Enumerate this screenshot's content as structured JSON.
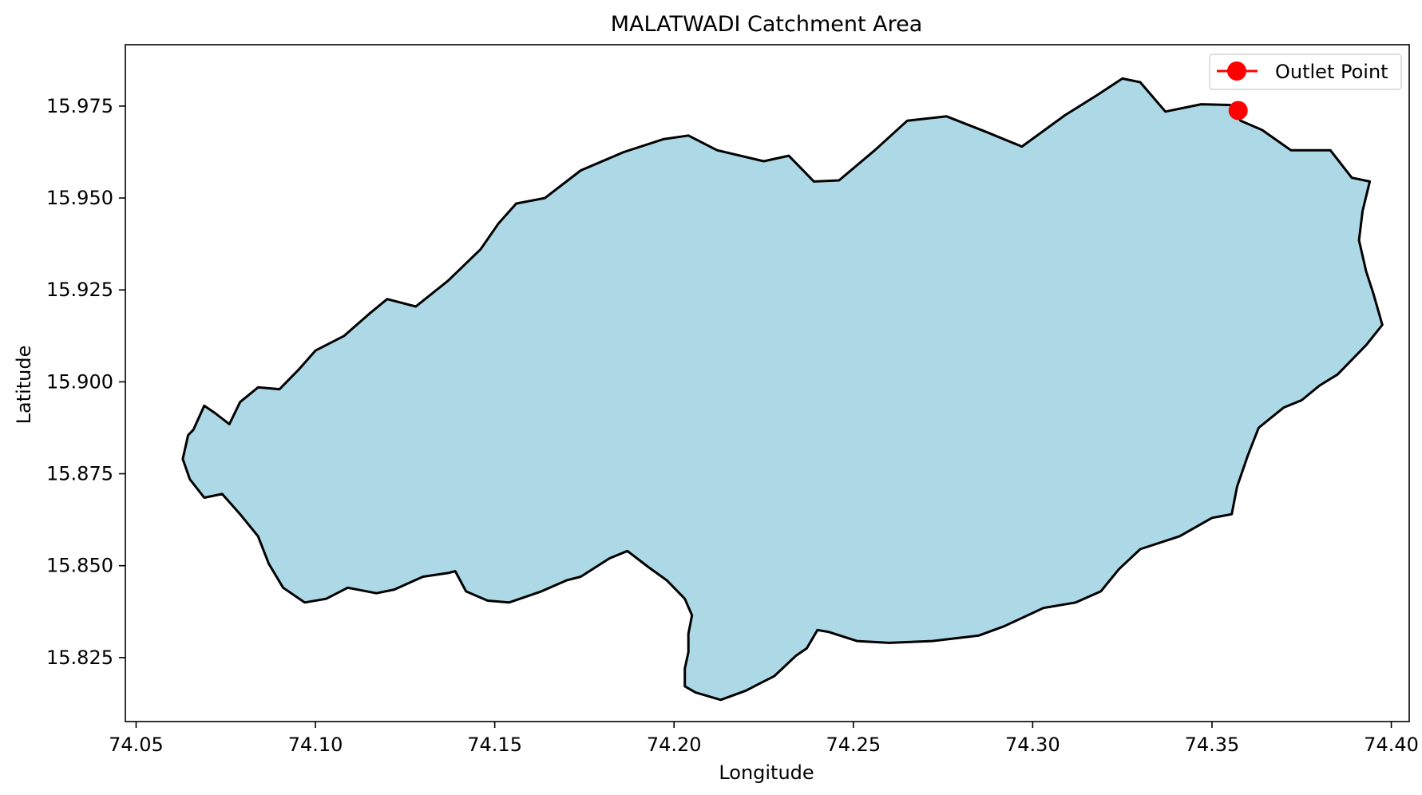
{
  "chart_data": {
    "type": "map",
    "title": "MALATWADI Catchment Area",
    "xlabel": "Longitude",
    "ylabel": "Latitude",
    "xlim": [
      74.047,
      74.405
    ],
    "ylim": [
      15.8076,
      15.9917
    ],
    "x_ticks": [
      74.05,
      74.1,
      74.15,
      74.2,
      74.25,
      74.3,
      74.35,
      74.4
    ],
    "x_tick_labels": [
      "74.05",
      "74.10",
      "74.15",
      "74.20",
      "74.25",
      "74.30",
      "74.35",
      "74.40"
    ],
    "y_ticks": [
      15.825,
      15.85,
      15.875,
      15.9,
      15.925,
      15.95,
      15.975
    ],
    "y_tick_labels": [
      "15.825",
      "15.850",
      "15.875",
      "15.900",
      "15.925",
      "15.950",
      "15.975"
    ],
    "grid": false,
    "legend": {
      "position": "top-right",
      "entries": [
        {
          "label": "Outlet Point",
          "color": "#ff0000",
          "marker": "circle"
        }
      ]
    },
    "catchment": {
      "fill": "#add8e6",
      "edge": "#000000",
      "boundary": [
        [
          74.063,
          15.879
        ],
        [
          74.0645,
          15.8855
        ],
        [
          74.066,
          15.887
        ],
        [
          74.069,
          15.8935
        ],
        [
          74.072,
          15.8915
        ],
        [
          74.076,
          15.8885
        ],
        [
          74.079,
          15.8945
        ],
        [
          74.084,
          15.8985
        ],
        [
          74.09,
          15.898
        ],
        [
          74.0955,
          15.9035
        ],
        [
          74.1,
          15.9085
        ],
        [
          74.108,
          15.9125
        ],
        [
          74.115,
          15.9185
        ],
        [
          74.12,
          15.9225
        ],
        [
          74.128,
          15.9205
        ],
        [
          74.137,
          15.9275
        ],
        [
          74.146,
          15.936
        ],
        [
          74.151,
          15.943
        ],
        [
          74.156,
          15.9485
        ],
        [
          74.164,
          15.95
        ],
        [
          74.174,
          15.9575
        ],
        [
          74.186,
          15.9625
        ],
        [
          74.197,
          15.966
        ],
        [
          74.204,
          15.967
        ],
        [
          74.212,
          15.963
        ],
        [
          74.225,
          15.96
        ],
        [
          74.232,
          15.9615
        ],
        [
          74.239,
          15.9545
        ],
        [
          74.246,
          15.9548
        ],
        [
          74.256,
          15.963
        ],
        [
          74.265,
          15.971
        ],
        [
          74.276,
          15.9722
        ],
        [
          74.287,
          15.968
        ],
        [
          74.297,
          15.964
        ],
        [
          74.309,
          15.9725
        ],
        [
          74.318,
          15.978
        ],
        [
          74.325,
          15.9825
        ],
        [
          74.33,
          15.9815
        ],
        [
          74.337,
          15.9735
        ],
        [
          74.347,
          15.9755
        ],
        [
          74.355,
          15.9753
        ],
        [
          74.358,
          15.971
        ],
        [
          74.364,
          15.9685
        ],
        [
          74.372,
          15.963
        ],
        [
          74.383,
          15.963
        ],
        [
          74.389,
          15.9555
        ],
        [
          74.394,
          15.9545
        ],
        [
          74.392,
          15.9465
        ],
        [
          74.391,
          15.9385
        ],
        [
          74.393,
          15.93
        ],
        [
          74.395,
          15.924
        ],
        [
          74.3975,
          15.9155
        ],
        [
          74.393,
          15.91
        ],
        [
          74.385,
          15.902
        ],
        [
          74.38,
          15.899
        ],
        [
          74.375,
          15.895
        ],
        [
          74.37,
          15.893
        ],
        [
          74.363,
          15.8875
        ],
        [
          74.36,
          15.88
        ],
        [
          74.357,
          15.8715
        ],
        [
          74.3555,
          15.864
        ],
        [
          74.35,
          15.863
        ],
        [
          74.341,
          15.858
        ],
        [
          74.33,
          15.8545
        ],
        [
          74.324,
          15.849
        ],
        [
          74.319,
          15.843
        ],
        [
          74.312,
          15.84
        ],
        [
          74.303,
          15.8385
        ],
        [
          74.292,
          15.8335
        ],
        [
          74.285,
          15.831
        ],
        [
          74.272,
          15.8295
        ],
        [
          74.26,
          15.829
        ],
        [
          74.251,
          15.8295
        ],
        [
          74.243,
          15.832
        ],
        [
          74.24,
          15.8325
        ],
        [
          74.237,
          15.8275
        ],
        [
          74.234,
          15.8255
        ],
        [
          74.228,
          15.82
        ],
        [
          74.224,
          15.818
        ],
        [
          74.22,
          15.816
        ],
        [
          74.213,
          15.8135
        ],
        [
          74.206,
          15.8155
        ],
        [
          74.203,
          15.8172
        ],
        [
          74.203,
          15.822
        ],
        [
          74.204,
          15.8265
        ],
        [
          74.204,
          15.8315
        ],
        [
          74.205,
          15.8365
        ],
        [
          74.203,
          15.841
        ],
        [
          74.198,
          15.846
        ],
        [
          74.193,
          15.8495
        ],
        [
          74.187,
          15.854
        ],
        [
          74.182,
          15.852
        ],
        [
          74.174,
          15.847
        ],
        [
          74.17,
          15.846
        ],
        [
          74.163,
          15.843
        ],
        [
          74.154,
          15.84
        ],
        [
          74.148,
          15.8405
        ],
        [
          74.142,
          15.843
        ],
        [
          74.139,
          15.8485
        ],
        [
          74.137,
          15.848
        ],
        [
          74.13,
          15.847
        ],
        [
          74.122,
          15.8435
        ],
        [
          74.117,
          15.8425
        ],
        [
          74.109,
          15.844
        ],
        [
          74.103,
          15.841
        ],
        [
          74.097,
          15.84
        ],
        [
          74.091,
          15.844
        ],
        [
          74.087,
          15.8505
        ],
        [
          74.084,
          15.858
        ],
        [
          74.079,
          15.864
        ],
        [
          74.074,
          15.8695
        ],
        [
          74.069,
          15.8685
        ],
        [
          74.065,
          15.8735
        ],
        [
          74.063,
          15.879
        ]
      ]
    },
    "outlet_point": {
      "lon": 74.3573,
      "lat": 15.9738,
      "label": "Outlet Point",
      "color": "#ff0000"
    }
  }
}
